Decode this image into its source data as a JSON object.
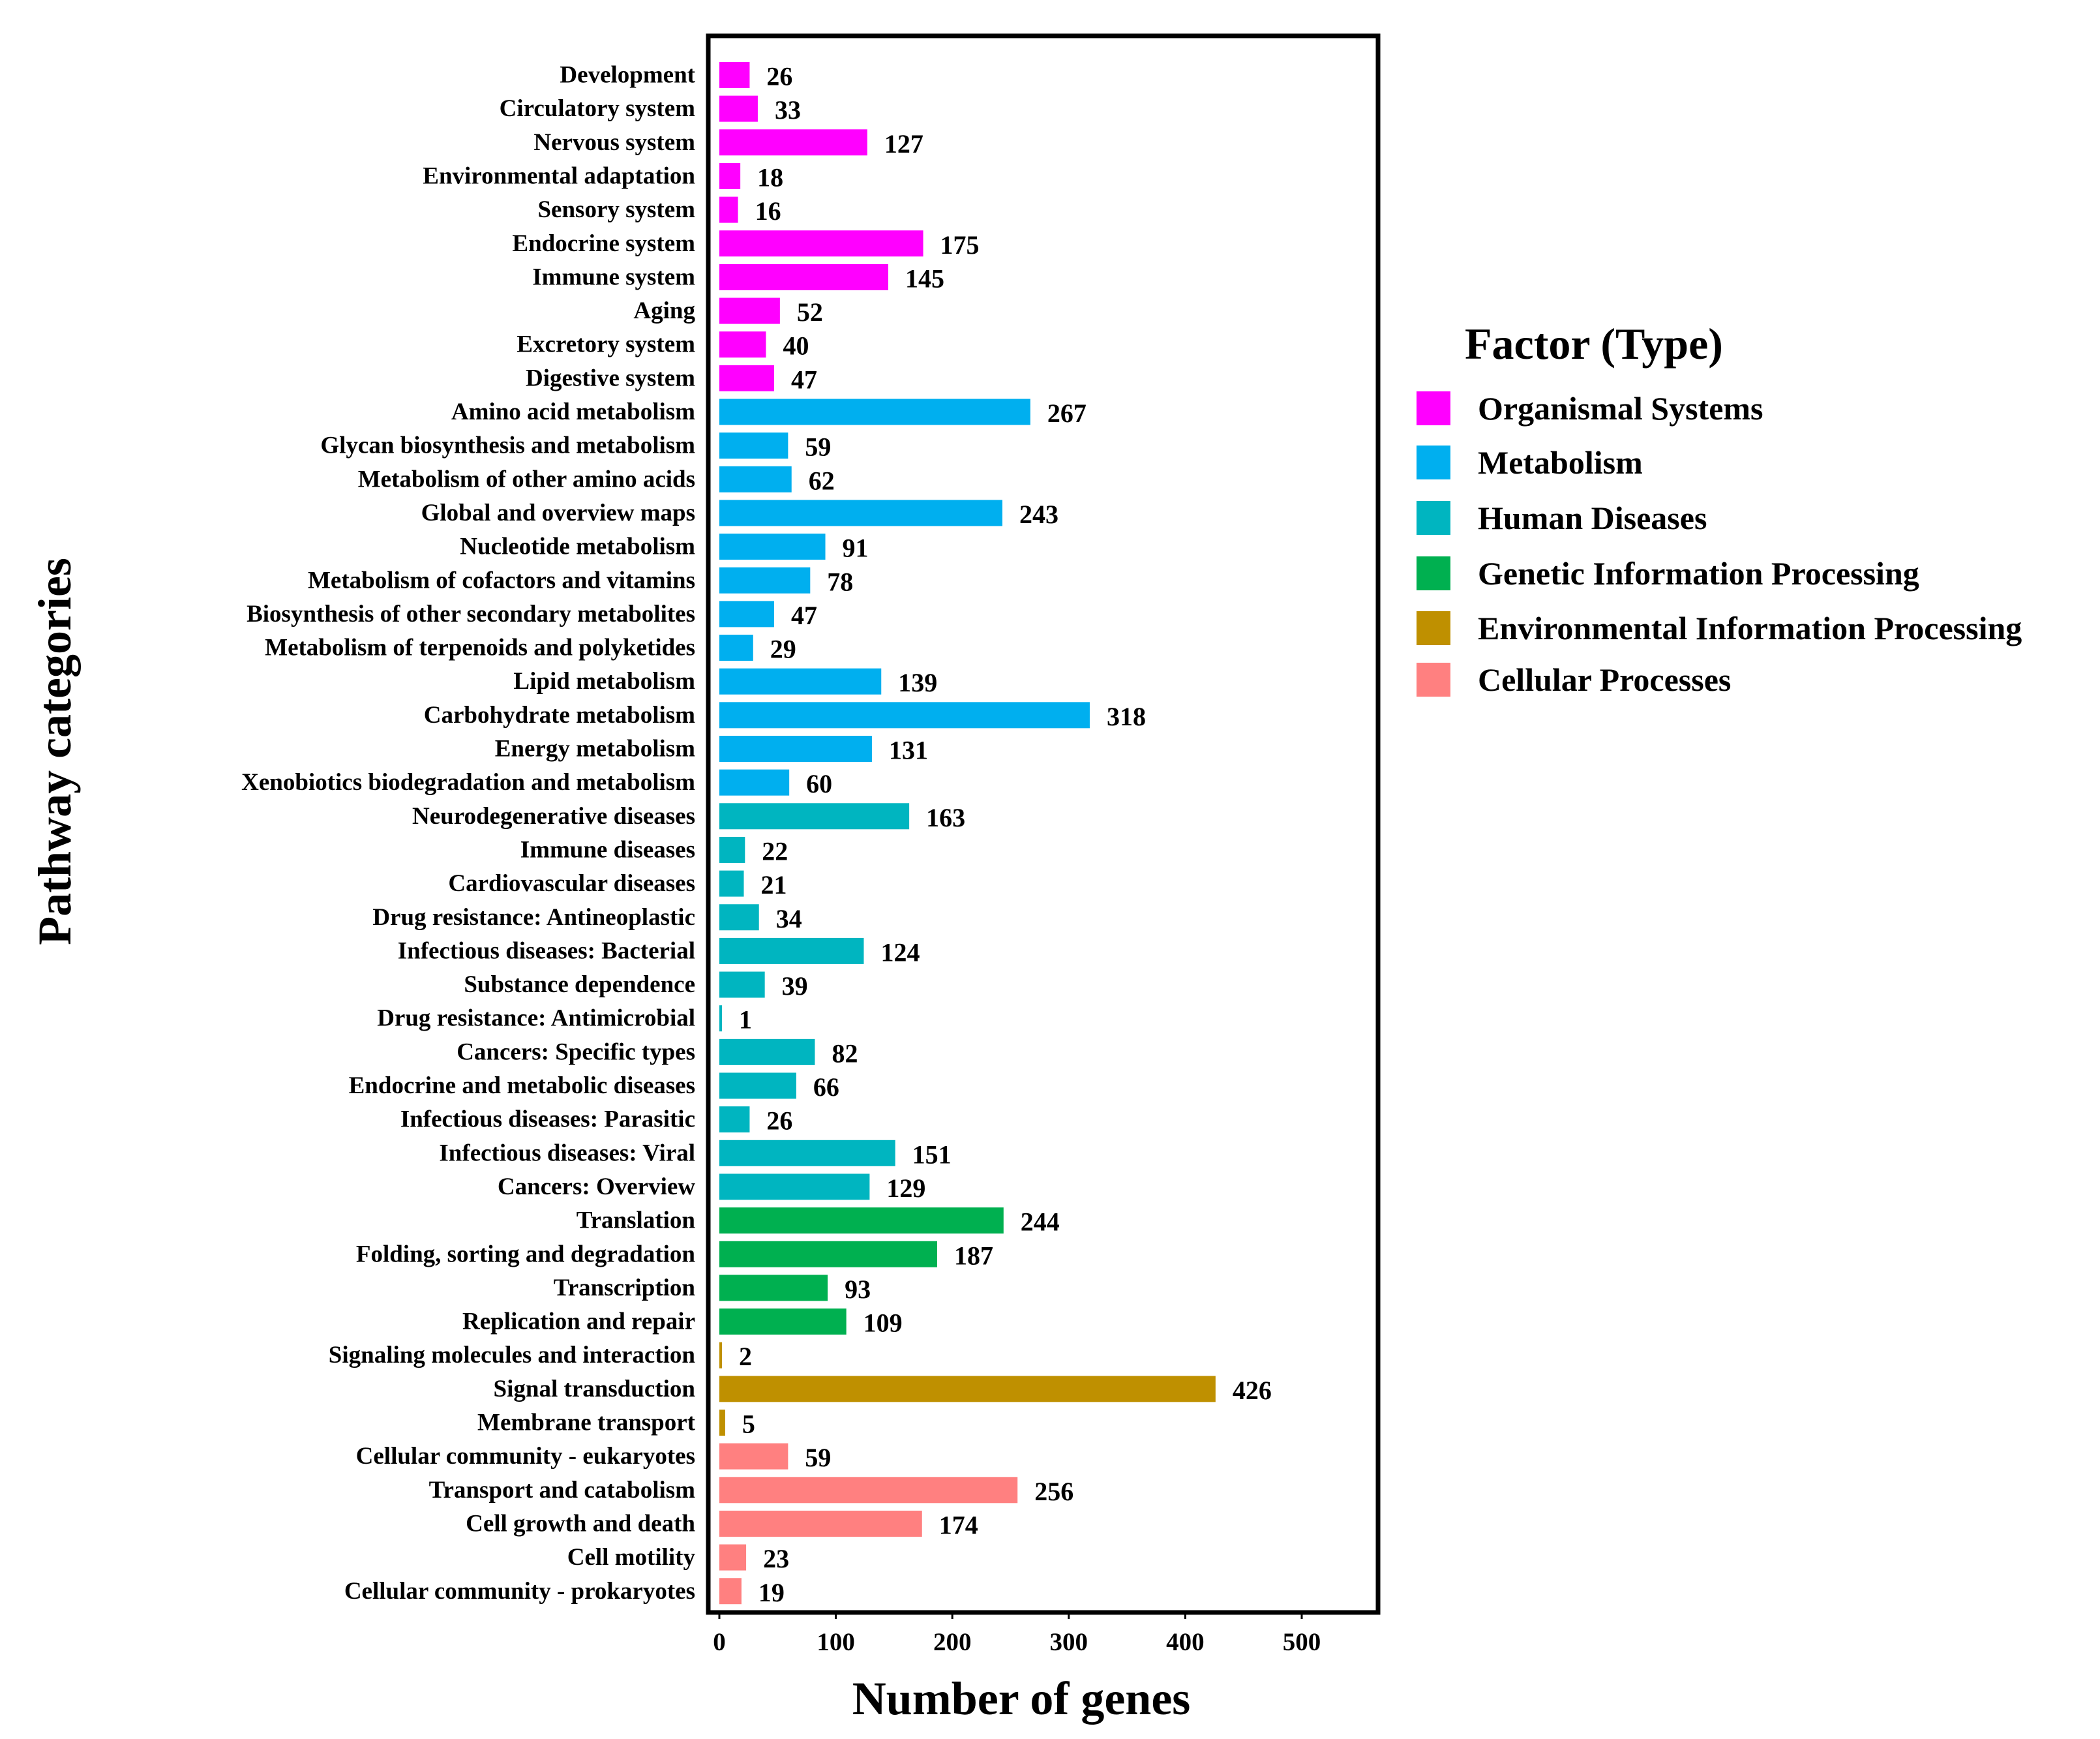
{
  "chart_data": {
    "type": "bar",
    "orientation": "horizontal",
    "xlabel": "Number of genes",
    "ylabel": "Pathway categories",
    "xlim": [
      0,
      565
    ],
    "xticks": [
      0,
      100,
      200,
      300,
      400,
      500
    ],
    "grid": false,
    "legend": {
      "title": "Factor (Type)",
      "position": "right",
      "entries": [
        {
          "name": "Organismal Systems",
          "color": "#FF00FF"
        },
        {
          "name": "Metabolism",
          "color": "#00AFEF"
        },
        {
          "name": "Human Diseases",
          "color": "#00B5C0"
        },
        {
          "name": "Genetic Information Processing",
          "color": "#00B050"
        },
        {
          "name": "Environmental Information Processing",
          "color": "#BF9000"
        },
        {
          "name": "Cellular Processes",
          "color": "#FF8080"
        }
      ]
    },
    "bars": [
      {
        "category": "Development",
        "value": 26,
        "group": "Organismal Systems"
      },
      {
        "category": "Circulatory system",
        "value": 33,
        "group": "Organismal Systems"
      },
      {
        "category": "Nervous system",
        "value": 127,
        "group": "Organismal Systems"
      },
      {
        "category": "Environmental adaptation",
        "value": 18,
        "group": "Organismal Systems"
      },
      {
        "category": "Sensory system",
        "value": 16,
        "group": "Organismal Systems"
      },
      {
        "category": "Endocrine system",
        "value": 175,
        "group": "Organismal Systems"
      },
      {
        "category": "Immune system",
        "value": 145,
        "group": "Organismal Systems"
      },
      {
        "category": "Aging",
        "value": 52,
        "group": "Organismal Systems"
      },
      {
        "category": "Excretory system",
        "value": 40,
        "group": "Organismal Systems"
      },
      {
        "category": "Digestive system",
        "value": 47,
        "group": "Organismal Systems"
      },
      {
        "category": "Amino acid metabolism",
        "value": 267,
        "group": "Metabolism"
      },
      {
        "category": "Glycan biosynthesis and metabolism",
        "value": 59,
        "group": "Metabolism"
      },
      {
        "category": "Metabolism of other amino acids",
        "value": 62,
        "group": "Metabolism"
      },
      {
        "category": "Global and overview maps",
        "value": 243,
        "group": "Metabolism"
      },
      {
        "category": "Nucleotide metabolism",
        "value": 91,
        "group": "Metabolism"
      },
      {
        "category": "Metabolism of cofactors and vitamins",
        "value": 78,
        "group": "Metabolism"
      },
      {
        "category": "Biosynthesis of other secondary metabolites",
        "value": 47,
        "group": "Metabolism"
      },
      {
        "category": "Metabolism of terpenoids and polyketides",
        "value": 29,
        "group": "Metabolism"
      },
      {
        "category": "Lipid metabolism",
        "value": 139,
        "group": "Metabolism"
      },
      {
        "category": "Carbohydrate metabolism",
        "value": 318,
        "group": "Metabolism"
      },
      {
        "category": "Energy metabolism",
        "value": 131,
        "group": "Metabolism"
      },
      {
        "category": "Xenobiotics biodegradation and metabolism",
        "value": 60,
        "group": "Metabolism"
      },
      {
        "category": "Neurodegenerative diseases",
        "value": 163,
        "group": "Human Diseases"
      },
      {
        "category": "Immune diseases",
        "value": 22,
        "group": "Human Diseases"
      },
      {
        "category": "Cardiovascular diseases",
        "value": 21,
        "group": "Human Diseases"
      },
      {
        "category": "Drug resistance: Antineoplastic",
        "value": 34,
        "group": "Human Diseases"
      },
      {
        "category": "Infectious diseases: Bacterial",
        "value": 124,
        "group": "Human Diseases"
      },
      {
        "category": "Substance dependence",
        "value": 39,
        "group": "Human Diseases"
      },
      {
        "category": "Drug resistance: Antimicrobial",
        "value": 1,
        "group": "Human Diseases"
      },
      {
        "category": "Cancers: Specific types",
        "value": 82,
        "group": "Human Diseases"
      },
      {
        "category": "Endocrine and metabolic diseases",
        "value": 66,
        "group": "Human Diseases"
      },
      {
        "category": "Infectious diseases: Parasitic",
        "value": 26,
        "group": "Human Diseases"
      },
      {
        "category": "Infectious diseases: Viral",
        "value": 151,
        "group": "Human Diseases"
      },
      {
        "category": "Cancers: Overview",
        "value": 129,
        "group": "Human Diseases"
      },
      {
        "category": "Translation",
        "value": 244,
        "group": "Genetic Information Processing"
      },
      {
        "category": "Folding, sorting and degradation",
        "value": 187,
        "group": "Genetic Information Processing"
      },
      {
        "category": "Transcription",
        "value": 93,
        "group": "Genetic Information Processing"
      },
      {
        "category": "Replication and repair",
        "value": 109,
        "group": "Genetic Information Processing"
      },
      {
        "category": "Signaling molecules and interaction",
        "value": 2,
        "group": "Environmental Information Processing"
      },
      {
        "category": "Signal transduction",
        "value": 426,
        "group": "Environmental Information Processing"
      },
      {
        "category": "Membrane transport",
        "value": 5,
        "group": "Environmental Information Processing"
      },
      {
        "category": "Cellular community - eukaryotes",
        "value": 59,
        "group": "Cellular Processes"
      },
      {
        "category": "Transport and catabolism",
        "value": 256,
        "group": "Cellular Processes"
      },
      {
        "category": "Cell growth and death",
        "value": 174,
        "group": "Cellular Processes"
      },
      {
        "category": "Cell motility",
        "value": 23,
        "group": "Cellular Processes"
      },
      {
        "category": "Cellular community - prokaryotes",
        "value": 19,
        "group": "Cellular Processes"
      }
    ]
  }
}
